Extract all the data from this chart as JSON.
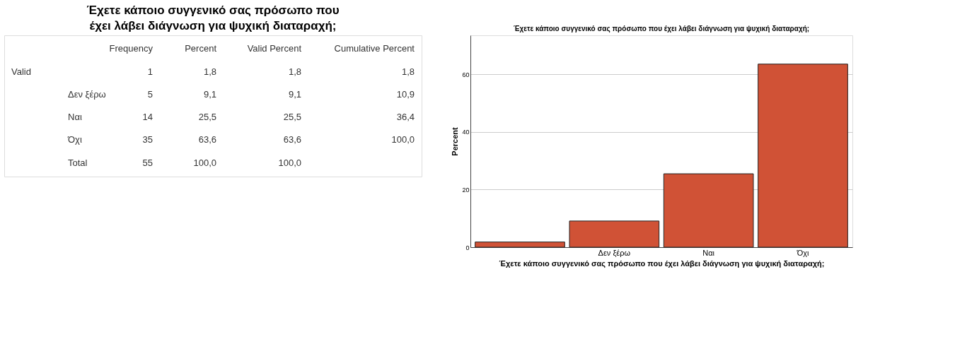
{
  "chart_data": [
    {
      "type": "other",
      "title": "Έχετε κάποιο συγγενικό σας πρόσωπο που έχει λάβει διάγνωση για ψυχική διαταραχή;",
      "annotations": [
        "Frequency",
        "Percent",
        "Valid Percent",
        "Cumulative Percent",
        "Valid",
        "1",
        "1,8",
        "1,8",
        "1,8",
        "Δεν ξέρω",
        "5",
        "9,1",
        "9,1",
        "10,9",
        "Ναι",
        "14",
        "25,5",
        "25,5",
        "36,4",
        "Όχι",
        "35",
        "63,6",
        "63,6",
        "100,0",
        "Total",
        "55",
        "100,0",
        "100,0"
      ]
    },
    {
      "type": "bar",
      "title": "Έχετε κάποιο συγγενικό σας πρόσωπο που έχει λάβει διάγνωση για ψυχική διαταραχή;",
      "xlabel": "Έχετε κάποιο συγγενικό σας πρόσωπο που έχει λάβει διάγνωση για ψυχική διαταραχή;",
      "ylabel": "Percent",
      "categories": [
        null,
        "Δεν ξέρω",
        "Ναι",
        "Όχι"
      ],
      "values": [
        1.8,
        9.1,
        25.5,
        63.6
      ],
      "color": "#d05236",
      "ylim": [
        0,
        73.6
      ],
      "yticks": [
        0,
        20,
        40,
        60
      ],
      "grid": "y"
    }
  ]
}
